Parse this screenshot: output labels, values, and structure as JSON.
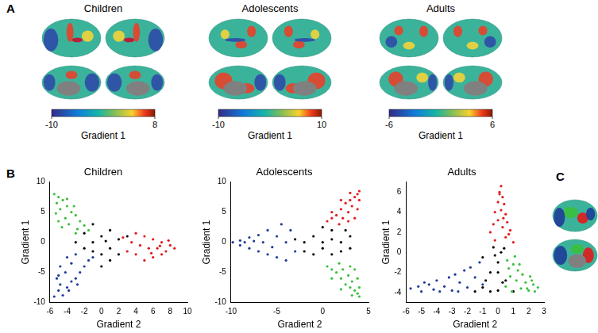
{
  "panel_labels": [
    "A",
    "B",
    "C"
  ],
  "brain_maps": [
    {
      "title": "Children",
      "colorbar": {
        "label": "Gradient 1",
        "range": [
          -10,
          8
        ],
        "ticks": [
          -10,
          8
        ]
      }
    },
    {
      "title": "Adolescents",
      "colorbar": {
        "label": "Gradient 1",
        "range": [
          -10,
          10
        ],
        "ticks": [
          -10,
          10
        ]
      }
    },
    {
      "title": "Adults",
      "colorbar": {
        "label": "Gradient 1",
        "range": [
          -6,
          6
        ],
        "ticks": [
          -6,
          6
        ]
      }
    }
  ],
  "chart_data": [
    {
      "type": "scatter",
      "title": "Children",
      "x_label": "Gradient 2",
      "y_label": "Gradient 1",
      "xlim": [
        -6,
        10
      ],
      "xticks": [
        -6,
        -4,
        -2,
        0,
        2,
        4,
        6,
        8,
        10
      ],
      "ylim": [
        -10,
        10
      ],
      "yticks": [
        -10,
        -5,
        0,
        5,
        10
      ],
      "grid": false,
      "series": [
        {
          "color": "#1f3c99",
          "x": [
            -5.5,
            -5,
            -4.5,
            -4.8,
            -4,
            -3.5,
            -5.2,
            -3,
            -4.2,
            -2.5,
            -4.8,
            -3.5,
            -2,
            -1.5,
            -4,
            -3,
            -5,
            -2.8,
            -1,
            -3.8
          ],
          "values": [
            -9,
            -8,
            -8.8,
            -7,
            -7.5,
            -6.5,
            -6,
            -6,
            -5,
            -5,
            -4,
            -3.5,
            -4,
            -3,
            -2.5,
            -2,
            -5.5,
            -7,
            -2.5,
            -8
          ]
        },
        {
          "color": "#3cbf3c",
          "x": [
            -5.5,
            -5,
            -5.2,
            -4.5,
            -4.8,
            -4,
            -3.5,
            -4.2,
            -3,
            -5.3,
            -2.5,
            -3.8,
            -2,
            -4.6,
            -1.5,
            -3,
            -5,
            -4,
            -3.2,
            -2.8
          ],
          "values": [
            8,
            7.5,
            6.5,
            7,
            5.5,
            6,
            5,
            4,
            4.5,
            4.8,
            3.5,
            3,
            2.8,
            2.5,
            2,
            1.5,
            3.5,
            7.2,
            6,
            2.2
          ]
        },
        {
          "color": "#e31a1c",
          "x": [
            8.5,
            8,
            7.5,
            7,
            7,
            6.5,
            6,
            6,
            5.5,
            5,
            5,
            4.5,
            4,
            4,
            3.5,
            3,
            7.8,
            6.8,
            5.8,
            2.5
          ],
          "values": [
            -1,
            -0.5,
            -1.5,
            0,
            -2,
            -1,
            0.5,
            -2.5,
            -1,
            1,
            -3,
            -0.5,
            1.5,
            -2,
            0,
            -1.5,
            0.3,
            -0.6,
            -1.8,
            0.8
          ]
        },
        {
          "color": "#000000",
          "x": [
            -1,
            0,
            1,
            -2,
            2,
            0,
            -1,
            1,
            -3,
            0,
            2,
            -2,
            1,
            3,
            -1,
            0.5
          ],
          "values": [
            0,
            1,
            -1,
            -1,
            0.5,
            -2,
            3,
            2,
            0,
            -4,
            -2,
            1.5,
            -3,
            1,
            -1.5,
            0.2
          ]
        }
      ]
    },
    {
      "type": "scatter",
      "title": "Adolescents",
      "x_label": "Gradient 2",
      "y_label": "Gradient 1",
      "xlim": [
        -10,
        5
      ],
      "xticks": [
        -10,
        -5,
        0,
        5
      ],
      "ylim": [
        -10,
        10
      ],
      "yticks": [
        -10,
        -5,
        0,
        5,
        10
      ],
      "grid": false,
      "series": [
        {
          "color": "#1f3c99",
          "x": [
            -9.8,
            -9,
            -9,
            -8,
            -8,
            -7,
            -7,
            -6.5,
            -6,
            -6,
            -5,
            -5,
            -4.5,
            -4,
            -4,
            -3.5,
            -3,
            -7.5,
            -5.5,
            -8.5
          ],
          "values": [
            0,
            0.3,
            -0.5,
            0.8,
            -1,
            1.2,
            -1.5,
            0,
            2,
            -2,
            1,
            -2.5,
            3,
            -3,
            0,
            2,
            -1.5,
            0.2,
            -0.8,
            0
          ]
        },
        {
          "color": "#e31a1c",
          "x": [
            4,
            3.8,
            3.5,
            4,
            3,
            3.2,
            2.5,
            2.8,
            2,
            3.8,
            1.5,
            2.2,
            1,
            3.5,
            0.5,
            1.8,
            2.8,
            3,
            2,
            1
          ],
          "values": [
            8.5,
            8,
            7.5,
            7,
            7,
            6,
            6.5,
            5,
            5.5,
            5.5,
            4.5,
            4,
            4,
            4,
            3.5,
            3,
            3.5,
            8.2,
            7,
            5
          ]
        },
        {
          "color": "#3cbf3c",
          "x": [
            4,
            3.8,
            3.5,
            4,
            3,
            3.2,
            2.5,
            2.8,
            2,
            3.8,
            1.5,
            2.2,
            1,
            3.5,
            0.5,
            1.8,
            3,
            3.2,
            2,
            1
          ],
          "values": [
            -9,
            -8.5,
            -8,
            -7.5,
            -7.5,
            -6.5,
            -7,
            -5.5,
            -6,
            -6,
            -5,
            -4.5,
            -4.5,
            -4.5,
            -4,
            -3.5,
            -4,
            -8.8,
            -7.8,
            -6
          ]
        },
        {
          "color": "#000000",
          "x": [
            -2,
            -1,
            0,
            1,
            0,
            1,
            -2,
            2,
            3,
            3,
            -1,
            0,
            1,
            2,
            -3,
            2.5
          ],
          "values": [
            0,
            1,
            -1,
            2,
            2.5,
            -2,
            -1.5,
            0,
            1,
            -1,
            -2,
            0,
            0.5,
            -1.5,
            0.5,
            2
          ]
        }
      ]
    },
    {
      "type": "scatter",
      "title": "Adults",
      "x_label": "Gradient 2",
      "y_label": "Gradient 1",
      "xlim": [
        -6,
        3
      ],
      "xticks": [
        -6,
        -5,
        -4,
        -3,
        -2,
        -1,
        0,
        1,
        2,
        3
      ],
      "ylim": [
        -5,
        7
      ],
      "yticks": [
        -4,
        -2,
        0,
        2,
        4,
        6
      ],
      "grid": false,
      "series": [
        {
          "color": "#1f3c99",
          "x": [
            -5.7,
            -5.2,
            -5,
            -4.5,
            -4.2,
            -4,
            -3.5,
            -3.2,
            -3,
            -2.8,
            -2.5,
            -2.2,
            -2,
            -1.8,
            -1.5,
            -1.2,
            -1,
            -4.8,
            -3.8,
            -2.6
          ],
          "values": [
            -3.6,
            -3.4,
            -3.9,
            -3.2,
            -3.7,
            -2.8,
            -3.4,
            -2.5,
            -3.8,
            -2.2,
            -3,
            -1.8,
            -3.5,
            -1.5,
            -2.5,
            -1,
            -3.2,
            -3,
            -3.9,
            -3.9
          ]
        },
        {
          "color": "#3cbf3c",
          "x": [
            2.6,
            2.3,
            2,
            2.2,
            1.8,
            1.6,
            1.5,
            1.3,
            1.2,
            1,
            0.9,
            0.8,
            0.6,
            0.5,
            1.9,
            2.4,
            1.4,
            0.7,
            2.1,
            1.1
          ],
          "values": [
            -3.5,
            -3.2,
            -3.8,
            -2.8,
            -3,
            -2.2,
            -3.6,
            -1.8,
            -2.8,
            -1.2,
            -3.9,
            -2.4,
            -0.8,
            -3.4,
            -3.6,
            -3.9,
            -1.2,
            -1.6,
            -2.4,
            -0.4
          ]
        },
        {
          "color": "#e31a1c",
          "x": [
            0.2,
            0.1,
            0.3,
            0,
            0.4,
            0.2,
            -0.2,
            0.5,
            0,
            0.6,
            -0.3,
            0.3,
            0.8,
            -0.5,
            0.5,
            1,
            -0.2,
            0.1,
            0.35,
            0.7
          ],
          "values": [
            6.6,
            6,
            5.5,
            5,
            4.8,
            4.2,
            4,
            3.8,
            3.2,
            3,
            2.8,
            2.5,
            2.2,
            2,
            1.5,
            1,
            1.2,
            5.8,
            3.4,
            1.8
          ]
        },
        {
          "color": "#000000",
          "x": [
            -1,
            0,
            -0.5,
            0,
            -1,
            0.2,
            -0.3,
            0.5,
            -0.5,
            0.3,
            -0.8,
            0,
            -0.2,
            -1.5,
            1,
            0.4
          ],
          "values": [
            -3.5,
            -3.8,
            -2,
            -1,
            -0.5,
            0,
            0.5,
            -2.8,
            -3.9,
            -3,
            -2.8,
            -2,
            -0.3,
            -3.9,
            -3.9,
            0.4
          ]
        }
      ]
    }
  ]
}
